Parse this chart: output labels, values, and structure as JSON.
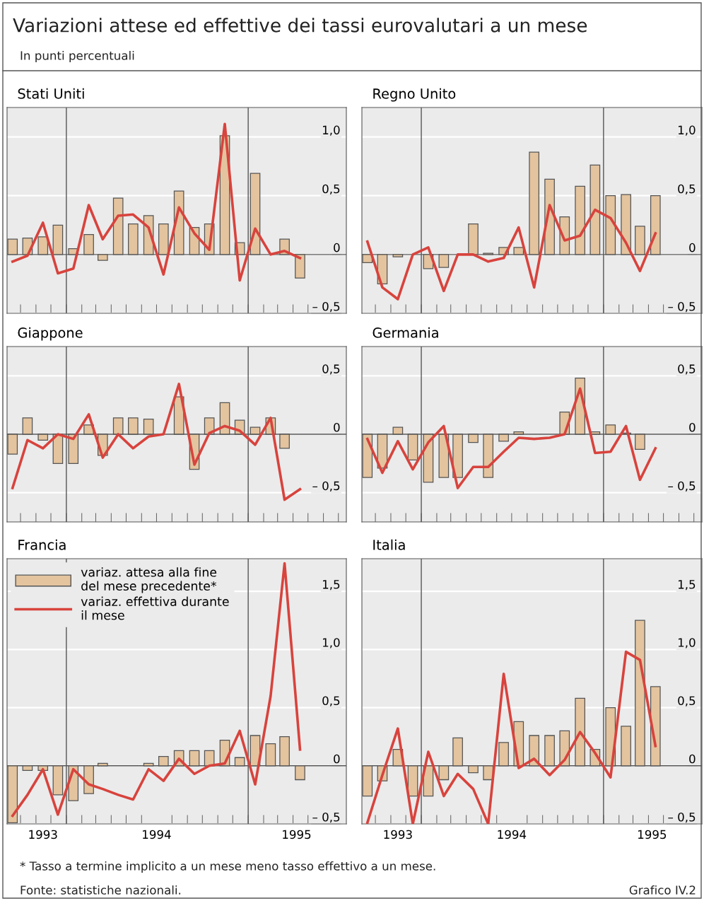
{
  "chart_data": [
    {
      "type": "other",
      "title": "Variazioni attese ed effettive dei tassi eurovalutari a un mese",
      "subtitle": "In punti percentuali",
      "annotations": [
        "* Tasso a termine implicito a un mese meno tasso effettivo a un mese.",
        "Fonte: statistiche nazionali.",
        "Grafico IV.2"
      ]
    },
    {
      "type": "bar",
      "title": "Stati Uniti",
      "x": [
        "1993-09-15",
        "1993-10-15",
        "1993-11-15",
        "1993-12-15",
        "1994-01-15",
        "1994-02-15",
        "1994-03-15",
        "1994-04-15",
        "1994-05-15",
        "1994-06-15",
        "1994-07-15",
        "1994-08-15",
        "1994-09-15",
        "1994-10-15",
        "1994-11-15",
        "1994-12-15",
        "1995-01-15",
        "1995-02-15",
        "1995-03-15",
        "1995-04-15"
      ],
      "xlim": [
        "1993-09-04",
        "1995-07-17"
      ],
      "ylim": [
        -0.5,
        1.25
      ],
      "yticks": [
        {
          "value": 1.0,
          "label": "1,0"
        },
        {
          "value": 0.5,
          "label": "0,5"
        },
        0,
        {
          "value": -0.5,
          "label": "– 0,5"
        }
      ],
      "grid": "y",
      "tick_labels": "y",
      "series": [
        {
          "type": "bar",
          "color": "#e3c49f",
          "values": [
            0.13,
            0.14,
            0.15,
            0.25,
            0.05,
            0.17,
            -0.05,
            0.48,
            0.26,
            0.33,
            0.26,
            0.54,
            0.23,
            0.26,
            1.01,
            0.1,
            0.69,
            null,
            0.13,
            -0.2
          ]
        },
        {
          "type": "line",
          "color": "#d8433d",
          "values": [
            -0.06,
            -0.01,
            0.27,
            -0.16,
            -0.12,
            0.42,
            0.13,
            0.33,
            0.34,
            0.23,
            -0.17,
            0.4,
            0.18,
            0.04,
            1.11,
            -0.22,
            0.22,
            0.0,
            0.03,
            -0.03
          ]
        }
      ],
      "ref_lines": [
        {
          "axis": "y",
          "value": 0,
          "color": "#555555"
        },
        {
          "axis": "x",
          "value": "1994-01-01",
          "color": "#555555"
        },
        {
          "axis": "x",
          "value": "1995-01-01",
          "color": "#555555"
        }
      ]
    },
    {
      "type": "bar",
      "title": "Regno Unito",
      "x": [
        "1993-09-15",
        "1993-10-15",
        "1993-11-15",
        "1993-12-15",
        "1994-01-15",
        "1994-02-15",
        "1994-03-15",
        "1994-04-15",
        "1994-05-15",
        "1994-06-15",
        "1994-07-15",
        "1994-08-15",
        "1994-09-15",
        "1994-10-15",
        "1994-11-15",
        "1994-12-15",
        "1995-01-15",
        "1995-02-15",
        "1995-03-15",
        "1995-04-15"
      ],
      "xlim": [
        "1993-09-04",
        "1995-07-17"
      ],
      "ylim": [
        -0.5,
        1.25
      ],
      "yticks": [
        {
          "value": 1.0,
          "label": "1,0"
        },
        {
          "value": 0.5,
          "label": "0,5"
        },
        0,
        {
          "value": -0.5,
          "label": "– 0,5"
        }
      ],
      "grid": "y",
      "tick_labels": "y",
      "series": [
        {
          "type": "bar",
          "color": "#e3c49f",
          "values": [
            -0.07,
            -0.25,
            -0.02,
            null,
            -0.12,
            -0.11,
            null,
            0.26,
            0.01,
            0.06,
            0.06,
            0.87,
            0.64,
            0.32,
            0.58,
            0.76,
            0.5,
            0.51,
            0.24,
            0.5
          ]
        },
        {
          "type": "line",
          "color": "#d8433d",
          "values": [
            0.11,
            -0.28,
            -0.38,
            0.0,
            0.06,
            -0.31,
            0.0,
            0.0,
            -0.06,
            -0.03,
            0.23,
            -0.28,
            0.42,
            0.12,
            0.16,
            0.38,
            0.31,
            0.1,
            -0.14,
            0.18
          ]
        }
      ],
      "ref_lines": [
        {
          "axis": "y",
          "value": 0,
          "color": "#555555"
        },
        {
          "axis": "x",
          "value": "1994-01-01",
          "color": "#555555"
        },
        {
          "axis": "x",
          "value": "1995-01-01",
          "color": "#555555"
        }
      ]
    },
    {
      "type": "bar",
      "title": "Giappone",
      "x": [
        "1993-09-15",
        "1993-10-15",
        "1993-11-15",
        "1993-12-15",
        "1994-01-15",
        "1994-02-15",
        "1994-03-15",
        "1994-04-15",
        "1994-05-15",
        "1994-06-15",
        "1994-07-15",
        "1994-08-15",
        "1994-09-15",
        "1994-10-15",
        "1994-11-15",
        "1994-12-15",
        "1995-01-15",
        "1995-02-15",
        "1995-03-15",
        "1995-04-15"
      ],
      "xlim": [
        "1993-09-04",
        "1995-07-17"
      ],
      "ylim": [
        -0.75,
        0.75
      ],
      "yticks": [
        {
          "value": 0.5,
          "label": "0,5"
        },
        0,
        {
          "value": -0.5,
          "label": "– 0,5"
        }
      ],
      "grid": "y",
      "tick_labels": "y",
      "series": [
        {
          "type": "bar",
          "color": "#e3c49f",
          "values": [
            -0.17,
            0.14,
            -0.05,
            -0.25,
            -0.25,
            0.08,
            -0.18,
            0.14,
            0.14,
            0.13,
            null,
            0.32,
            -0.3,
            0.14,
            0.27,
            0.12,
            0.06,
            0.14,
            -0.12,
            null
          ]
        },
        {
          "type": "line",
          "color": "#d8433d",
          "values": [
            -0.46,
            -0.05,
            -0.12,
            0.0,
            -0.04,
            0.17,
            -0.2,
            0.0,
            -0.12,
            -0.02,
            0.0,
            0.43,
            -0.26,
            0.01,
            0.07,
            0.03,
            -0.09,
            0.14,
            -0.56,
            -0.47
          ]
        }
      ],
      "ref_lines": [
        {
          "axis": "y",
          "value": 0,
          "color": "#555555"
        },
        {
          "axis": "x",
          "value": "1994-01-01",
          "color": "#555555"
        },
        {
          "axis": "x",
          "value": "1995-01-01",
          "color": "#555555"
        }
      ]
    },
    {
      "type": "bar",
      "title": "Germania",
      "x": [
        "1993-09-15",
        "1993-10-15",
        "1993-11-15",
        "1993-12-15",
        "1994-01-15",
        "1994-02-15",
        "1994-03-15",
        "1994-04-15",
        "1994-05-15",
        "1994-06-15",
        "1994-07-15",
        "1994-08-15",
        "1994-09-15",
        "1994-10-15",
        "1994-11-15",
        "1994-12-15",
        "1995-01-15",
        "1995-02-15",
        "1995-03-15",
        "1995-04-15"
      ],
      "xlim": [
        "1993-09-04",
        "1995-07-17"
      ],
      "ylim": [
        -0.75,
        0.75
      ],
      "yticks": [
        {
          "value": 0.5,
          "label": "0,5"
        },
        0,
        {
          "value": -0.5,
          "label": "– 0,5"
        }
      ],
      "grid": "y",
      "tick_labels": "y",
      "series": [
        {
          "type": "bar",
          "color": "#e3c49f",
          "values": [
            -0.37,
            -0.29,
            0.06,
            -0.22,
            -0.41,
            -0.37,
            -0.37,
            -0.07,
            -0.37,
            -0.06,
            0.02,
            null,
            null,
            0.19,
            0.48,
            0.02,
            0.08,
            0.01,
            -0.13,
            null
          ]
        },
        {
          "type": "line",
          "color": "#d8433d",
          "values": [
            -0.04,
            -0.33,
            -0.06,
            -0.3,
            -0.07,
            0.07,
            -0.46,
            -0.28,
            -0.28,
            -0.15,
            -0.03,
            -0.04,
            -0.03,
            0.0,
            0.39,
            -0.16,
            -0.15,
            0.07,
            -0.39,
            -0.12
          ]
        }
      ],
      "ref_lines": [
        {
          "axis": "y",
          "value": 0,
          "color": "#555555"
        },
        {
          "axis": "x",
          "value": "1994-01-01",
          "color": "#555555"
        },
        {
          "axis": "x",
          "value": "1995-01-01",
          "color": "#555555"
        }
      ]
    },
    {
      "type": "bar",
      "title": "Francia",
      "x": [
        "1993-09-15",
        "1993-10-15",
        "1993-11-15",
        "1993-12-15",
        "1994-01-15",
        "1994-02-15",
        "1994-03-15",
        "1994-04-15",
        "1994-05-15",
        "1994-06-15",
        "1994-07-15",
        "1994-08-15",
        "1994-09-15",
        "1994-10-15",
        "1994-11-15",
        "1994-12-15",
        "1995-01-15",
        "1995-02-15",
        "1995-03-15",
        "1995-04-15"
      ],
      "xlim": [
        "1993-09-04",
        "1995-07-17"
      ],
      "xticks": [
        {
          "value": "1993-11-15",
          "label": "1993"
        },
        {
          "value": "1994-07-01",
          "label": "1994"
        },
        {
          "value": "1995-04-08",
          "label": "1995"
        }
      ],
      "ylim": [
        -0.5,
        1.78
      ],
      "yticks": [
        {
          "value": 1.5,
          "label": "1,5"
        },
        {
          "value": 1.0,
          "label": "1,0"
        },
        {
          "value": 0.5,
          "label": "0,5"
        },
        0,
        {
          "value": -0.5,
          "label": "– 0,5"
        }
      ],
      "grid": "y",
      "legend": "top left",
      "series": [
        {
          "name": "variaz. attesa alla fine\ndel mese precedente*",
          "type": "bar",
          "color": "#e3c49f",
          "values": [
            -0.49,
            -0.04,
            -0.04,
            -0.25,
            -0.3,
            -0.24,
            0.02,
            null,
            null,
            0.02,
            0.08,
            0.13,
            0.13,
            0.13,
            0.22,
            0.07,
            0.26,
            0.19,
            0.25,
            -0.12
          ]
        },
        {
          "name": "variaz. effettiva durante\nil mese",
          "type": "line",
          "color": "#d8433d",
          "values": [
            -0.43,
            -0.25,
            -0.03,
            -0.42,
            -0.03,
            -0.16,
            -0.2,
            -0.25,
            -0.29,
            -0.03,
            -0.13,
            0.06,
            -0.07,
            0.0,
            0.02,
            0.3,
            -0.16,
            0.6,
            1.74,
            0.14
          ]
        }
      ],
      "ref_lines": [
        {
          "axis": "y",
          "value": 0,
          "color": "#555555"
        },
        {
          "axis": "x",
          "value": "1994-01-01",
          "color": "#555555"
        },
        {
          "axis": "x",
          "value": "1995-01-01",
          "color": "#555555"
        }
      ]
    },
    {
      "type": "bar",
      "title": "Italia",
      "x": [
        "1993-09-15",
        "1993-10-15",
        "1993-11-15",
        "1993-12-15",
        "1994-01-15",
        "1994-02-15",
        "1994-03-15",
        "1994-04-15",
        "1994-05-15",
        "1994-06-15",
        "1994-07-15",
        "1994-08-15",
        "1994-09-15",
        "1994-10-15",
        "1994-11-15",
        "1994-12-15",
        "1995-01-15",
        "1995-02-15",
        "1995-03-15",
        "1995-04-15"
      ],
      "xlim": [
        "1993-09-04",
        "1995-07-17"
      ],
      "xticks": [
        {
          "value": "1993-11-15",
          "label": "1993"
        },
        {
          "value": "1994-07-01",
          "label": "1994"
        },
        {
          "value": "1995-04-08",
          "label": "1995"
        }
      ],
      "ylim": [
        -0.5,
        1.78
      ],
      "yticks": [
        {
          "value": 1.5,
          "label": "1,5"
        },
        {
          "value": 1.0,
          "label": "1,0"
        },
        {
          "value": 0.5,
          "label": "0,5"
        },
        0,
        {
          "value": -0.5,
          "label": "– 0,5"
        }
      ],
      "grid": "y",
      "series": [
        {
          "type": "bar",
          "color": "#e3c49f",
          "values": [
            -0.26,
            -0.13,
            0.14,
            -0.26,
            -0.26,
            -0.12,
            0.24,
            -0.06,
            -0.12,
            0.2,
            0.38,
            0.26,
            0.26,
            0.3,
            0.58,
            0.14,
            0.5,
            0.34,
            1.25,
            0.68
          ]
        },
        {
          "type": "line",
          "color": "#d8433d",
          "values": [
            -0.49,
            -0.08,
            0.32,
            -0.5,
            0.12,
            -0.26,
            -0.07,
            -0.2,
            -0.5,
            0.79,
            -0.02,
            0.06,
            -0.08,
            0.05,
            0.29,
            0.11,
            -0.1,
            0.98,
            0.91,
            0.17
          ]
        }
      ],
      "ref_lines": [
        {
          "axis": "y",
          "value": 0,
          "color": "#555555"
        },
        {
          "axis": "x",
          "value": "1994-01-01",
          "color": "#555555"
        },
        {
          "axis": "x",
          "value": "1995-01-01",
          "color": "#555555"
        }
      ]
    }
  ]
}
